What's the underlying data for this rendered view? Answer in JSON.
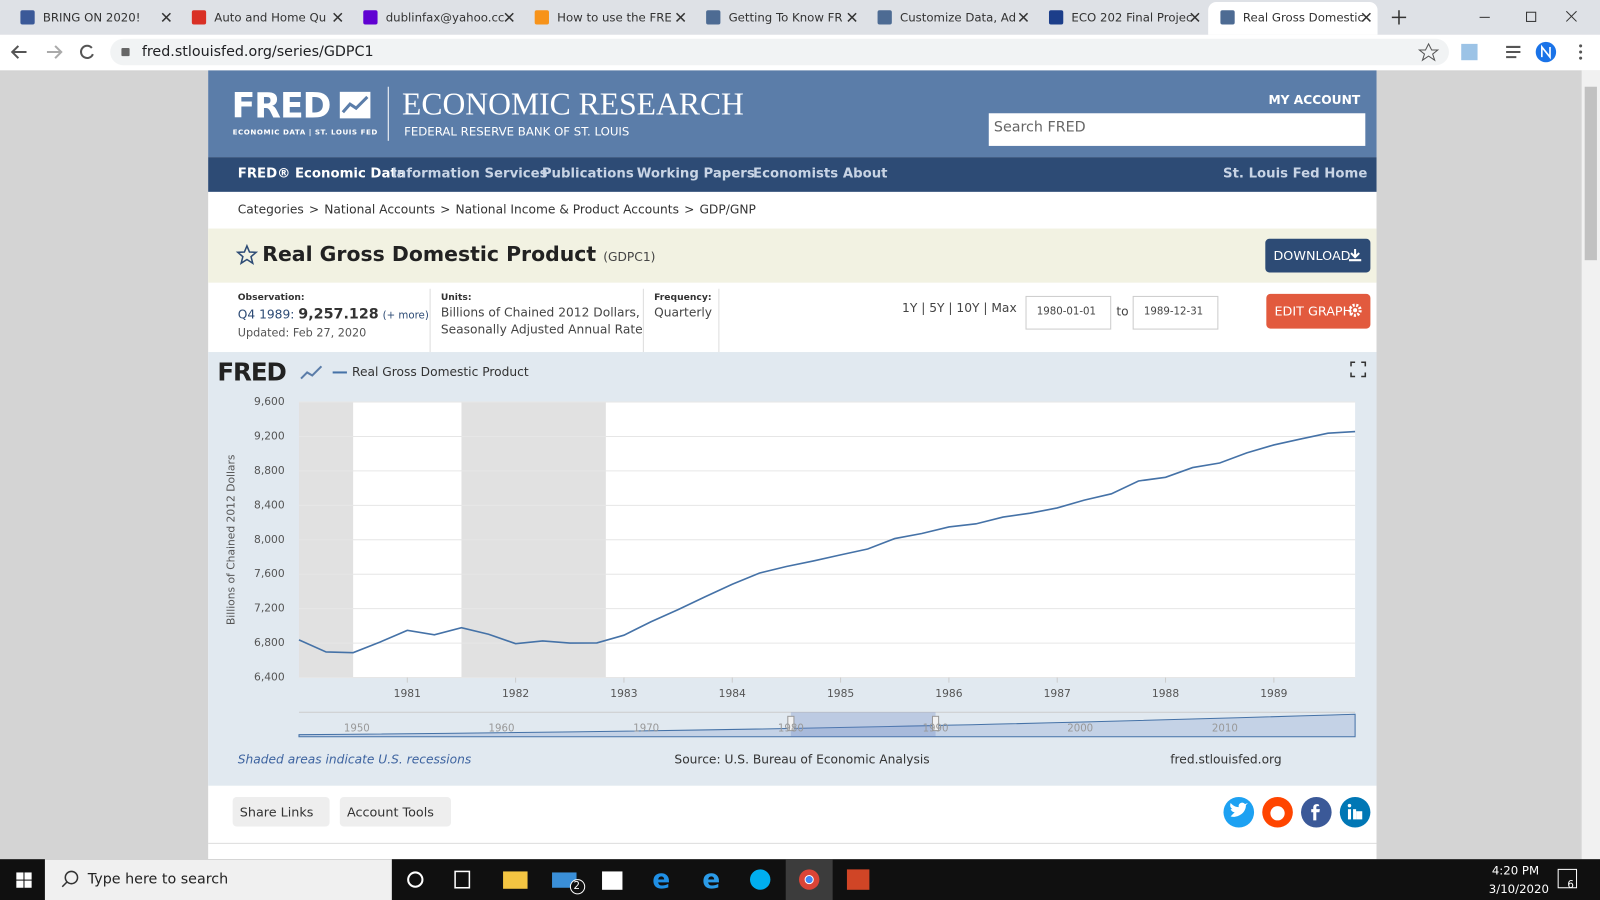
{
  "browser": {
    "tabs": [
      "BRING ON 2020!",
      "Auto and Home Qu",
      "dublinfax@yahoo.cc",
      "How to use the FRE",
      "Getting To Know FR",
      "Customize Data, Ad",
      "ECO 202 Final Projec",
      "Real Gross Domestic"
    ],
    "url": "fred.stlouisfed.org/series/GDPC1"
  },
  "header": {
    "logo": "FRED",
    "logo_sub": "ECONOMIC DATA | ST. LOUIS FED",
    "title": "ECONOMIC RESEARCH",
    "subtitle": "FEDERAL RESERVE BANK OF ST. LOUIS",
    "account": "MY ACCOUNT",
    "search_placeholder": "Search FRED"
  },
  "nav": {
    "items": [
      "FRED® Economic Data",
      "Information Services",
      "Publications",
      "Working Papers",
      "Economists",
      "About"
    ],
    "right": "St. Louis Fed Home"
  },
  "breadcrumbs": {
    "items": [
      "Categories",
      "National Accounts",
      "National Income & Product Accounts",
      "GDP/GNP"
    ],
    "separator": ">"
  },
  "series": {
    "title": "Real Gross Domestic Product",
    "id": "(GDPC1)",
    "download": "DOWNLOAD",
    "observation_label": "Observation:",
    "observation": "Q4 1989:",
    "observation_value": "9,257.128",
    "more": "(+ more)",
    "updated": "Updated: Feb 27, 2020",
    "units_label": "Units:",
    "units": [
      "Billions of Chained 2012 Dollars,",
      "Seasonally Adjusted Annual Rate"
    ],
    "frequency_label": "Frequency:",
    "frequency": "Quarterly",
    "ranges": "1Y | 5Y | 10Y | Max",
    "start": "1980-01-01",
    "to": "to",
    "end": "1989-12-31",
    "edit": "EDIT GRAPH"
  },
  "chart_logo": "FRED",
  "chart_data": {
    "type": "line",
    "ylabel": "Billions of Chained 2012 Dollars",
    "x": [
      1980,
      1980.25,
      1980.5,
      1980.75,
      1981,
      1981.25,
      1981.5,
      1981.75,
      1982,
      1982.25,
      1982.5,
      1982.75,
      1983,
      1983.25,
      1983.5,
      1983.75,
      1984,
      1984.25,
      1984.5,
      1984.75,
      1985,
      1985.25,
      1985.5,
      1985.75,
      1986,
      1986.25,
      1986.5,
      1986.75,
      1987,
      1987.25,
      1987.5,
      1987.75,
      1988,
      1988.25,
      1988.5,
      1988.75,
      1989,
      1989.25,
      1989.5,
      1989.75
    ],
    "series": [
      {
        "name": "Real Gross Domestic Product",
        "color": "#4572a7",
        "values": [
          6837,
          6697,
          6689,
          6813,
          6948,
          6896,
          6979,
          6903,
          6794,
          6825,
          6800,
          6802,
          6892,
          7048,
          7189,
          7339,
          7484,
          7613,
          7690,
          7754,
          7825,
          7893,
          8014,
          8073,
          8149,
          8185,
          8264,
          8309,
          8370,
          8461,
          8534,
          8683,
          8726,
          8839,
          8892,
          9010,
          9102,
          9171,
          9238,
          9257.128
        ]
      }
    ],
    "xlim": [
      1980,
      1989.75
    ],
    "xticks": [
      1981,
      1982,
      1983,
      1984,
      1985,
      1986,
      1987,
      1988,
      1989
    ],
    "ylim": [
      6400,
      9600
    ],
    "yticks": [
      {
        "value": 6400,
        "label": "6,400"
      },
      {
        "value": 6800,
        "label": "6,800"
      },
      {
        "value": 7200,
        "label": "7,200"
      },
      {
        "value": 7600,
        "label": "7,600"
      },
      {
        "value": 8000,
        "label": "8,000"
      },
      {
        "value": 8400,
        "label": "8,400"
      },
      {
        "value": 8800,
        "label": "8,800"
      },
      {
        "value": 9200,
        "label": "9,200"
      },
      {
        "value": 9600,
        "label": "9,600"
      }
    ],
    "grid": true,
    "recessions": [
      [
        1980,
        1980.5
      ],
      [
        1981.5,
        1982.833
      ]
    ],
    "navigator": {
      "xlim": [
        1946,
        2019
      ],
      "xticks": [
        1950,
        1960,
        1970,
        1980,
        1990,
        2000,
        2010
      ],
      "selection": [
        1980,
        1990
      ]
    },
    "notes": {
      "recessions": "Shaded areas indicate U.S. recessions",
      "source": "Source: U.S. Bureau of Economic Analysis",
      "site": "fred.stlouisfed.org"
    }
  },
  "share": [
    "Share Links",
    "Account Tools"
  ],
  "taskbar": {
    "search": "Type here to search",
    "time": "4:20 PM",
    "date": "3/10/2020",
    "mail_badge": "2",
    "notifications": "6"
  }
}
